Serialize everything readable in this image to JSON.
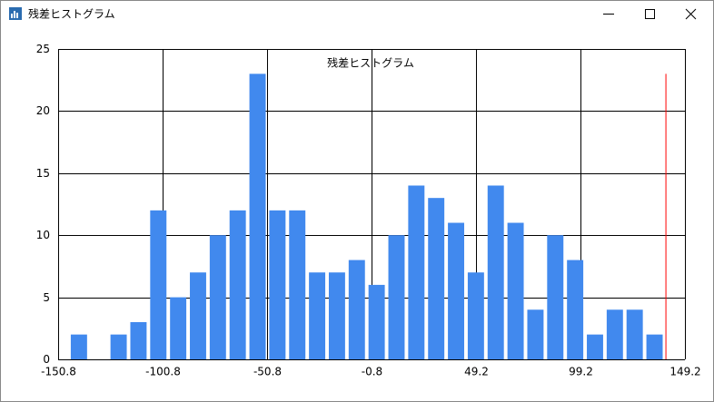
{
  "window": {
    "title": "残差ヒストグラム"
  },
  "chart_data": {
    "type": "histogram",
    "title": "残差ヒストグラム",
    "bins": [
      -145.6,
      -136.1,
      -126.6,
      -117.1,
      -107.6,
      -98.1,
      -88.6,
      -79.1,
      -69.6,
      -60.1,
      -50.6,
      -41.1,
      -31.6,
      -22.1,
      -12.6,
      -3.1,
      6.4,
      15.9,
      25.4,
      34.9,
      44.4,
      53.9,
      63.4,
      72.9,
      82.4,
      91.9,
      101.4,
      110.9,
      120.4,
      129.9,
      139.4
    ],
    "values": [
      2,
      0,
      2,
      3,
      12,
      5,
      7,
      10,
      12,
      23,
      12,
      12,
      7,
      7,
      8,
      6,
      10,
      14,
      13,
      11,
      7,
      14,
      11,
      4,
      10,
      8,
      2,
      4,
      4,
      2
    ],
    "color": "#4189ee",
    "xlim": [
      -150.8,
      149.2
    ],
    "xticks": [
      -150.8,
      -100.8,
      -50.8,
      -0.8,
      49.2,
      99.2,
      149.2
    ],
    "ylim": [
      0,
      25
    ],
    "yticks": [
      0,
      5,
      10,
      15,
      20,
      25
    ],
    "grid": true,
    "marker_line": {
      "x": 140.1,
      "top": 23,
      "color": "#ff0000"
    }
  }
}
